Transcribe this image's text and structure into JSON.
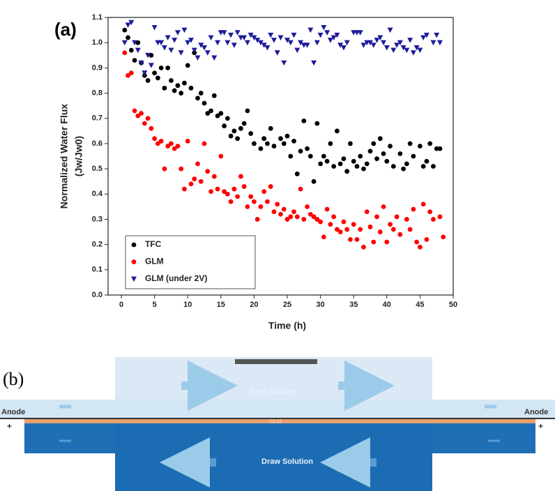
{
  "chart_data": {
    "type": "scatter",
    "panel_label": "(a)",
    "x_label": "Time (h)",
    "y_label": "Normalized Water Flux",
    "y_label_2": "(Jw/Jw0)",
    "xlim": [
      -2,
      50
    ],
    "xticks": [
      0,
      5,
      10,
      15,
      20,
      25,
      30,
      35,
      40,
      45,
      50
    ],
    "ylim": [
      0,
      1.1
    ],
    "yticks": [
      {
        "value": 0,
        "label": "0.0"
      },
      0.1,
      0.2,
      0.3,
      0.4,
      0.5,
      0.6,
      0.7,
      0.8,
      0.9,
      {
        "value": 1,
        "label": "1.0"
      },
      1.1
    ],
    "legend": "lower left",
    "series": [
      {
        "name": "TFC",
        "color": "#000000",
        "marker": "circle",
        "x": [
          0.5,
          1,
          1.5,
          2,
          2.5,
          3,
          3.5,
          4,
          4.5,
          5,
          5.5,
          6,
          6.5,
          7,
          7.5,
          8,
          8.5,
          9,
          9.5,
          10,
          10.5,
          11,
          11.5,
          12,
          12.5,
          13,
          13.5,
          14,
          14.5,
          15,
          15.5,
          16,
          16.5,
          17,
          17.5,
          18,
          18.5,
          19,
          19.5,
          20,
          21,
          21.5,
          22,
          22.5,
          23,
          24,
          24.5,
          25,
          25.5,
          26,
          26.5,
          27,
          27.5,
          28,
          28.5,
          29,
          29.5,
          30,
          30.5,
          31,
          31.5,
          32,
          32.5,
          33,
          33.5,
          34,
          34.5,
          35,
          35.5,
          36,
          36.5,
          37,
          37.5,
          38,
          38.5,
          39,
          39.5,
          40,
          40.5,
          41,
          42,
          42.5,
          43,
          43.5,
          44,
          45,
          45.5,
          46,
          46.5,
          47,
          47.5,
          48
        ],
        "values": [
          1.05,
          1.02,
          0.97,
          0.93,
          1.0,
          0.92,
          0.87,
          0.85,
          0.95,
          0.88,
          0.86,
          0.9,
          0.82,
          0.9,
          0.85,
          0.81,
          0.83,
          0.8,
          0.84,
          0.91,
          0.82,
          0.96,
          0.78,
          0.8,
          0.76,
          0.72,
          0.73,
          0.79,
          0.71,
          0.72,
          0.67,
          0.7,
          0.63,
          0.65,
          0.62,
          0.66,
          0.68,
          0.73,
          0.64,
          0.6,
          0.58,
          0.62,
          0.6,
          0.66,
          0.59,
          0.62,
          0.6,
          0.63,
          0.55,
          0.61,
          0.48,
          0.57,
          0.69,
          0.58,
          0.55,
          0.45,
          0.68,
          0.52,
          0.55,
          0.53,
          0.6,
          0.51,
          0.65,
          0.52,
          0.54,
          0.49,
          0.6,
          0.53,
          0.51,
          0.55,
          0.5,
          0.52,
          0.57,
          0.6,
          0.54,
          0.62,
          0.56,
          0.53,
          0.59,
          0.51,
          0.56,
          0.5,
          0.52,
          0.6,
          0.55,
          0.59,
          0.51,
          0.53,
          0.6,
          0.51,
          0.58,
          0.58
        ]
      },
      {
        "name": "GLM",
        "color": "#ff0000",
        "marker": "circle",
        "x": [
          0.5,
          1,
          1.5,
          2,
          2.5,
          3,
          3.5,
          4,
          4.5,
          5,
          5.5,
          6,
          6.5,
          7,
          7.5,
          8,
          8.5,
          9,
          9.5,
          10,
          10.5,
          11,
          11.5,
          12,
          12.5,
          13,
          13.5,
          14,
          14.5,
          15,
          15.5,
          16,
          16.5,
          17,
          17.5,
          18,
          18.5,
          19,
          19.5,
          20,
          20.5,
          21,
          21.5,
          22,
          22.5,
          23,
          23.5,
          24,
          24.5,
          25,
          25.5,
          26,
          26.5,
          27,
          27.5,
          28,
          28.5,
          29,
          29.5,
          30,
          30.5,
          31,
          31.5,
          32,
          32.5,
          33,
          33.5,
          34,
          34.5,
          35,
          35.5,
          36,
          36.5,
          37,
          37.5,
          38,
          38.5,
          39,
          39.5,
          40,
          40.5,
          41,
          41.5,
          42,
          43,
          43.5,
          44,
          44.5,
          45,
          45.5,
          46,
          46.5,
          47,
          48,
          48.5
        ],
        "values": [
          0.96,
          0.87,
          0.88,
          0.73,
          0.71,
          0.72,
          0.68,
          0.7,
          0.66,
          0.62,
          0.6,
          0.61,
          0.5,
          0.59,
          0.6,
          0.58,
          0.59,
          0.5,
          0.42,
          0.61,
          0.44,
          0.46,
          0.52,
          0.45,
          0.6,
          0.49,
          0.41,
          0.47,
          0.42,
          0.55,
          0.41,
          0.4,
          0.37,
          0.42,
          0.39,
          0.47,
          0.43,
          0.35,
          0.39,
          0.37,
          0.3,
          0.35,
          0.41,
          0.37,
          0.43,
          0.33,
          0.36,
          0.32,
          0.34,
          0.3,
          0.31,
          0.33,
          0.31,
          0.42,
          0.3,
          0.35,
          0.32,
          0.31,
          0.3,
          0.29,
          0.23,
          0.34,
          0.28,
          0.31,
          0.26,
          0.25,
          0.29,
          0.26,
          0.22,
          0.28,
          0.22,
          0.26,
          0.19,
          0.33,
          0.27,
          0.21,
          0.31,
          0.25,
          0.35,
          0.21,
          0.28,
          0.26,
          0.31,
          0.24,
          0.3,
          0.26,
          0.34,
          0.21,
          0.19,
          0.36,
          0.22,
          0.33,
          0.3,
          0.31,
          0.23
        ]
      },
      {
        "name": "GLM (under 2V)",
        "color": "#1c1c99",
        "marker": "triangle-down",
        "x": [
          0.5,
          1,
          1.5,
          2,
          2.5,
          3,
          3.5,
          4,
          4.5,
          5,
          5.5,
          6,
          6.5,
          7,
          7.5,
          8,
          8.5,
          9,
          9.5,
          10,
          10.5,
          11,
          11.5,
          12,
          12.5,
          13,
          13.5,
          14,
          14.5,
          15,
          15.5,
          16,
          16.5,
          17,
          17.5,
          18,
          18.5,
          19,
          19.5,
          20,
          20.5,
          21,
          21.5,
          22,
          22.5,
          23,
          23.5,
          24,
          24.5,
          25,
          25.5,
          26,
          26.5,
          27,
          27.5,
          28,
          28.5,
          29,
          29.5,
          30,
          30.5,
          31,
          31.5,
          32,
          32.5,
          33,
          33.5,
          34,
          35,
          35.5,
          36,
          36.5,
          37,
          37.5,
          38,
          38.5,
          39,
          39.5,
          40,
          40.5,
          41,
          41.5,
          42,
          42.5,
          43,
          43.5,
          44,
          44.5,
          45,
          45.5,
          46,
          47,
          47.5,
          48
        ],
        "values": [
          1.0,
          1.07,
          1.08,
          1.0,
          0.97,
          0.92,
          0.88,
          0.95,
          0.91,
          1.06,
          1.0,
          1.0,
          0.98,
          1.02,
          0.97,
          1.01,
          1.04,
          0.96,
          1.05,
          1.0,
          1.01,
          0.97,
          0.94,
          0.99,
          0.98,
          0.96,
          1.02,
          0.94,
          1.0,
          1.04,
          1.04,
          1.0,
          1.03,
          0.99,
          1.04,
          1.02,
          1.02,
          1.0,
          1.03,
          1.02,
          1.01,
          1.0,
          0.99,
          0.98,
          1.03,
          1.01,
          0.96,
          1.02,
          0.92,
          1.01,
          1.0,
          1.03,
          0.97,
          1.0,
          0.99,
          0.99,
          1.05,
          0.92,
          1.0,
          1.03,
          1.06,
          1.04,
          1.01,
          1.02,
          1.03,
          0.99,
          0.98,
          1.0,
          1.04,
          1.04,
          1.04,
          0.99,
          1.0,
          1.0,
          0.99,
          1.01,
          1.02,
          1.0,
          0.98,
          1.05,
          0.97,
          0.99,
          1.0,
          0.98,
          0.97,
          1.01,
          0.96,
          0.98,
          0.97,
          1.02,
          1.03,
          1.0,
          1.03,
          1.0
        ]
      }
    ]
  },
  "diagram": {
    "panel_label": "(b)",
    "left_electrode": "Anode",
    "left_sign": "+",
    "right_electrode": "Anode",
    "right_sign": "+",
    "feed": "Feed Solution",
    "membrane": "GLM",
    "draw": "Draw Solution"
  }
}
